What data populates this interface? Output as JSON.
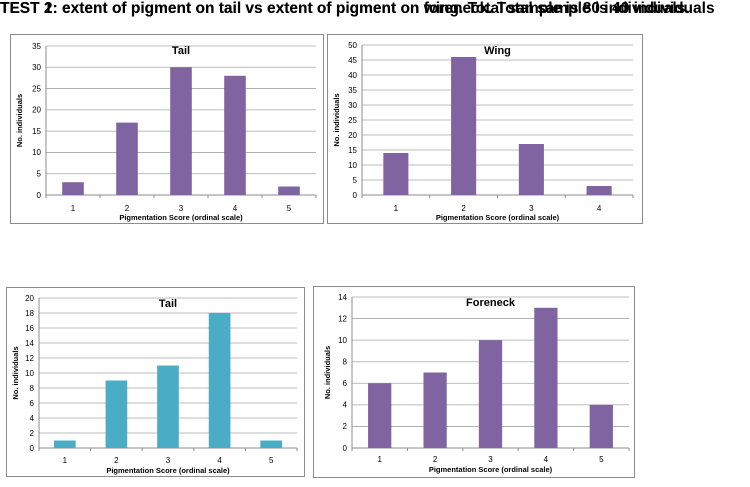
{
  "headings": {
    "test1": "TEST 1: extent of pigment on tail vs extent of pigment on wing. Total sample is 80 individuals.",
    "test2": "TEST 2: extent of pigment on tail vs extent of pigment on foreneck. Total sample is 40 individuals"
  },
  "chart_data": [
    {
      "type": "bar",
      "title": "Tail",
      "categories": [
        "1",
        "2",
        "3",
        "4",
        "5"
      ],
      "values": [
        3,
        17,
        30,
        28,
        2
      ],
      "xlabel": "Pigmentation Score (ordinal scale)",
      "ylabel": "No. individuals",
      "ylim": [
        0,
        35
      ],
      "yticks": [
        0,
        5,
        10,
        15,
        20,
        25,
        30,
        35
      ],
      "grid": true,
      "color": "#8064a2"
    },
    {
      "type": "bar",
      "title": "Wing",
      "categories": [
        "1",
        "2",
        "3",
        "4"
      ],
      "values": [
        14,
        46,
        17,
        3
      ],
      "xlabel": "Pigmentation Score (ordinal scale)",
      "ylabel": "No. individuals",
      "ylim": [
        0,
        50
      ],
      "yticks": [
        0,
        5,
        10,
        15,
        20,
        25,
        30,
        35,
        40,
        45,
        50
      ],
      "grid": true,
      "color": "#8064a2"
    },
    {
      "type": "bar",
      "title": "Tail",
      "categories": [
        "1",
        "2",
        "3",
        "4",
        "5"
      ],
      "values": [
        1,
        9,
        11,
        18,
        1
      ],
      "xlabel": "Pigmentation Score (ordinal scale)",
      "ylabel": "No. individuals",
      "ylim": [
        0,
        20
      ],
      "yticks": [
        0,
        2,
        4,
        6,
        8,
        10,
        12,
        14,
        16,
        18,
        20
      ],
      "grid": true,
      "color": "#4bacc6"
    },
    {
      "type": "bar",
      "title": "Foreneck",
      "categories": [
        "1",
        "2",
        "3",
        "4",
        "5"
      ],
      "values": [
        6,
        7,
        10,
        13,
        4
      ],
      "xlabel": "Pigmentation Score (ordinal scale)",
      "ylabel": "No. individuals",
      "ylim": [
        0,
        14
      ],
      "yticks": [
        0,
        2,
        4,
        6,
        8,
        10,
        12,
        14
      ],
      "grid": true,
      "color": "#8064a2"
    }
  ]
}
